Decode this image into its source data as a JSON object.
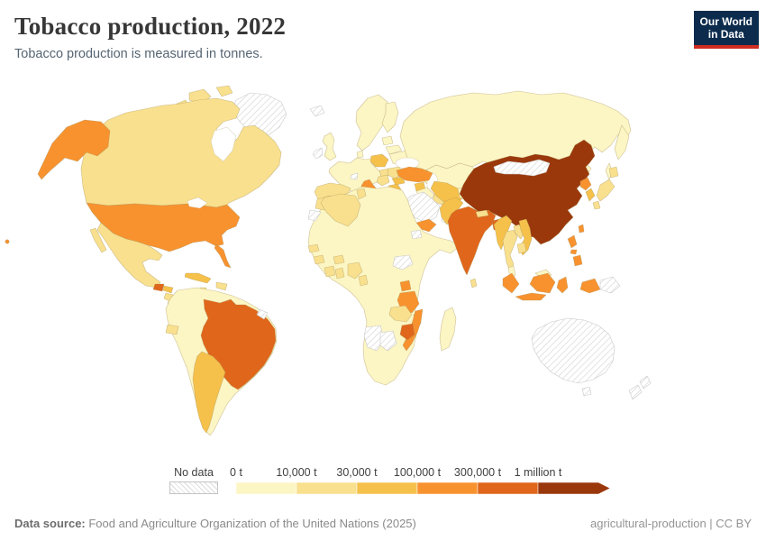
{
  "header": {
    "title": "Tobacco production, 2022",
    "subtitle": "Tobacco production is measured in tonnes.",
    "logo_line1": "Our World",
    "logo_line2": "in Data",
    "logo_bg": "#0d2c4d",
    "logo_accent": "#cf2d22"
  },
  "legend": {
    "no_data_label": "No data",
    "stops": [
      {
        "label": "0 t",
        "color": "#fcf5c4"
      },
      {
        "label": "10,000 t",
        "color": "#f9e08e"
      },
      {
        "label": "30,000 t",
        "color": "#f6c14b"
      },
      {
        "label": "100,000 t",
        "color": "#f8922f"
      },
      {
        "label": "300,000 t",
        "color": "#e0661b"
      },
      {
        "label": "1 million t",
        "color": "#9a380c"
      }
    ]
  },
  "footer": {
    "source_label": "Data source:",
    "source_text": " Food and Agriculture Organization of the United Nations (2025)",
    "note": "agricultural-production | CC BY"
  },
  "chart_data": {
    "type": "choropleth-map",
    "title": "Tobacco production, 2022",
    "unit": "tonnes",
    "legend_buckets": [
      "0 t – 10,000 t",
      "10,000 t – 30,000 t",
      "30,000 t – 100,000 t",
      "100,000 t – 300,000 t",
      "300,000 t – 1 million t",
      "over 1 million t",
      "No data"
    ],
    "notable_values": {
      "china": "over 1 million t",
      "india": "300,000 t – 1 million t",
      "brazil": "300,000 t – 1 million t",
      "zimbabwe": "300,000 t – 1 million t",
      "bangladesh": "300,000 t – 1 million t",
      "guatemala": "300,000 t – 1 million t",
      "united-states": "100,000 t – 300,000 t",
      "indonesia": "100,000 t – 300,000 t",
      "turkey": "100,000 t – 300,000 t",
      "italy": "100,000 t – 300,000 t",
      "tanzania": "100,000 t – 300,000 t",
      "mozambique": "100,000 t – 300,000 t",
      "malawi": "100,000 t – 300,000 t",
      "philippines": "100,000 t – 300,000 t",
      "north-korea": "100,000 t – 300,000 t",
      "argentina": "30,000 t – 100,000 t",
      "pakistan": "30,000 t – 100,000 t",
      "cuba": "30,000 t – 100,000 t",
      "poland": "30,000 t – 100,000 t",
      "greece": "30,000 t – 100,000 t",
      "vietnam": "30,000 t – 100,000 t",
      "myanmar": "30,000 t – 100,000 t",
      "australia": "No data",
      "mongolia": "No data",
      "greenland": "No data",
      "saudi-arabia": "No data",
      "namibia": "No data",
      "botswana": "No data"
    }
  },
  "map": {
    "regions": {
      "greenland": "n",
      "iceland": "n",
      "ireland": "n",
      "switzerland": "n",
      "mongolia": "n",
      "saudi-arabia": "n",
      "oman": "n",
      "south-sudan": "n",
      "eritrea": "n",
      "western-sahara": "n",
      "namibia": "n",
      "botswana": "n",
      "french-guiana": "n",
      "papua-new-guinea": "n",
      "australia": "n",
      "tasmania": "n",
      "new-zealand-north": "n",
      "new-zealand-south": "n",
      "canada": 1,
      "canadian-arctic-a": 1,
      "canadian-arctic-b": 1,
      "canadian-arctic-c": 1,
      "alaska": 3,
      "usa": 3,
      "florida": 3,
      "hawaii": 3,
      "mexico": 1,
      "baja-california": 1,
      "guatemala": 4,
      "honduras": 2,
      "nicaragua": 1,
      "costa-rica-panama": 0,
      "cuba": 2,
      "hispaniola": 1,
      "jamaica": 1,
      "south-america-base": 0,
      "brazil": 4,
      "argentina": 2,
      "ecuador": 1,
      "united-kingdom": 0,
      "scandinavia": 0,
      "finland": 0,
      "denmark": 0,
      "western-europe": 0,
      "spain": 1,
      "italy": 3,
      "sicily": 3,
      "sardinia": 1,
      "poland": 2,
      "hungary": 1,
      "romania": 1,
      "bulgaria": 2,
      "balkans": 1,
      "greece": 2,
      "ukraine": 0,
      "belarus": 0,
      "baltics": 0,
      "russia": 0,
      "kamchatka": 0,
      "sakhalin": 0,
      "kazakhstan": 0,
      "uzbekistan": 2,
      "turkmenistan": 1,
      "kyrgyzstan": 1,
      "caucasus": 2,
      "turkey": 3,
      "syria": 2,
      "iraq": 0,
      "iran": 2,
      "afghanistan": 0,
      "yemen": 3,
      "africa-base": 0,
      "morocco": 1,
      "algeria": 1,
      "tunisia": 1,
      "senegal": 1,
      "guinea": 1,
      "burkina-faso": 1,
      "ivory-coast": 1,
      "ghana": 1,
      "nigeria": 1,
      "cameroon": 1,
      "uganda": 3,
      "tanzania": 3,
      "malawi": 3,
      "zambia": 1,
      "mozambique": 3,
      "zimbabwe": 4,
      "madagascar": 0,
      "india": 4,
      "sri-lanka": 1,
      "pakistan": 2,
      "nepal": 1,
      "bangladesh": 4,
      "myanmar": 2,
      "thailand": 1,
      "laos": 1,
      "vietnam": 2,
      "cambodia": 1,
      "malaysia-peninsula": 0,
      "malaysia-borneo": 0,
      "china": 5,
      "north-korea": 3,
      "south-korea": 2,
      "japan-hokkaido": 1,
      "japan-honshu": 1,
      "japan-kyushu": 1,
      "taiwan": 3,
      "philippines-luzon": 3,
      "philippines-visayas": 3,
      "philippines-mindanao": 3,
      "sumatra": 3,
      "java": 3,
      "kalimantan": 3,
      "sulawesi": 3,
      "west-papua": 3
    }
  }
}
